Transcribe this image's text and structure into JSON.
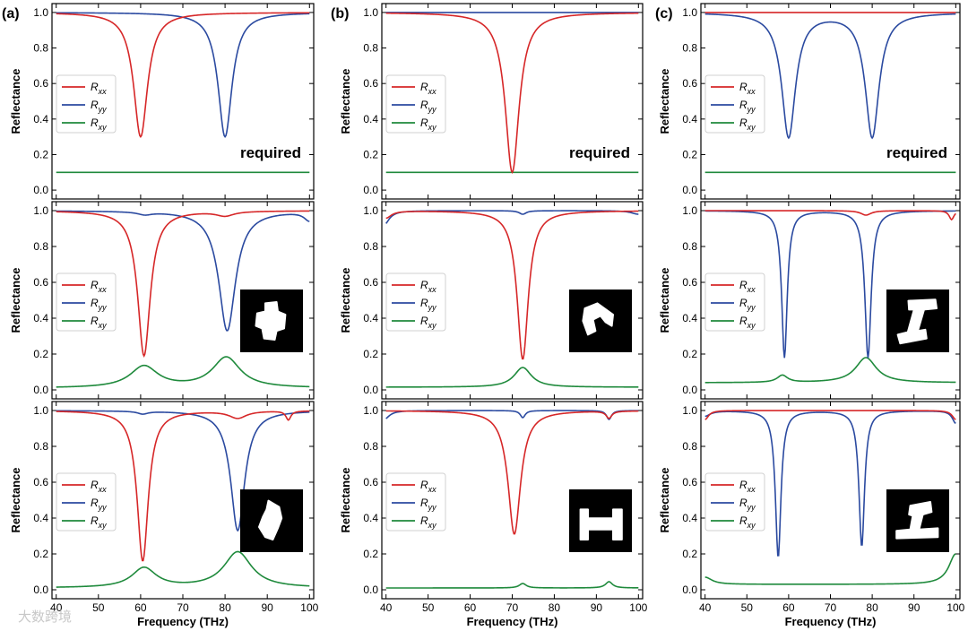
{
  "chart_data": {
    "type": "line",
    "xlabel": "Frequency (THz)",
    "ylabel": "Reflectance",
    "xlim": [
      39,
      101
    ],
    "ylim": [
      -0.05,
      1.05
    ],
    "xticks": [
      40,
      50,
      60,
      70,
      80,
      90,
      100
    ],
    "yticks": [
      0.0,
      0.2,
      0.4,
      0.6,
      0.8,
      1.0
    ],
    "ytick_labels": [
      "0.0",
      "0.2",
      "0.4",
      "0.6",
      "0.8",
      "1.0"
    ],
    "legend_labels": [
      [
        "R",
        "xx"
      ],
      [
        "R",
        "yy"
      ],
      [
        "R",
        "xy"
      ]
    ],
    "series_colors": {
      "Rxx": "#d62728",
      "Ryy": "#2b4aa0",
      "Rxy": "#1f8a3c"
    },
    "legend_location": "center-left",
    "columns": [
      {
        "label": "(a)",
        "rows": [
          {
            "annotation": "required",
            "inset": null,
            "series": {
              "Rxx": {
                "base": 1.0,
                "dips": [
                  [
                    60,
                    0.7,
                    2.0
                  ]
                ],
                "offset": 0
              },
              "Ryy": {
                "base": 1.0,
                "dips": [
                  [
                    80,
                    0.7,
                    2.0
                  ]
                ],
                "offset": 0
              },
              "Rxy": {
                "base": 0.1,
                "dips": [],
                "offset": 0
              }
            }
          },
          {
            "annotation": "",
            "inset": "shape-blob",
            "series": {
              "Rxx": {
                "base": 1.0,
                "dips": [
                  [
                    60.8,
                    0.81,
                    1.8
                  ],
                  [
                    80,
                    0.025,
                    2.5
                  ]
                ],
                "offset": 0
              },
              "Ryy": {
                "base": 1.0,
                "dips": [
                  [
                    80.5,
                    0.67,
                    2.4
                  ],
                  [
                    61,
                    0.015,
                    2.0
                  ],
                  [
                    100,
                    0.05,
                    1.5
                  ]
                ],
                "offset": 0
              },
              "Rxy": {
                "base": 0.0,
                "dips": [
                  [
                    60.8,
                    -0.12,
                    4.0
                  ],
                  [
                    80.3,
                    -0.17,
                    4.0
                  ]
                ],
                "offset": 0.01
              }
            }
          },
          {
            "annotation": "",
            "inset": "shape-blob2",
            "series": {
              "Rxx": {
                "base": 1.0,
                "dips": [
                  [
                    60.5,
                    0.84,
                    1.6
                  ],
                  [
                    83,
                    0.04,
                    2.5
                  ],
                  [
                    95,
                    0.05,
                    0.7
                  ]
                ],
                "offset": 0
              },
              "Ryy": {
                "base": 1.0,
                "dips": [
                  [
                    83,
                    0.67,
                    2.0
                  ],
                  [
                    60.5,
                    0.015,
                    1.5
                  ]
                ],
                "offset": 0
              },
              "Rxy": {
                "base": 0.0,
                "dips": [
                  [
                    60.8,
                    -0.11,
                    3.5
                  ],
                  [
                    83,
                    -0.2,
                    4.0
                  ]
                ],
                "offset": 0.01
              }
            }
          }
        ]
      },
      {
        "label": "(b)",
        "rows": [
          {
            "annotation": "required",
            "inset": null,
            "series": {
              "Rxx": {
                "base": 1.0,
                "dips": [
                  [
                    70,
                    0.9,
                    2.0
                  ]
                ],
                "offset": 0
              },
              "Ryy": {
                "base": 1.0,
                "dips": [],
                "offset": 0
              },
              "Rxy": {
                "base": 0.1,
                "dips": [],
                "offset": 0
              }
            }
          },
          {
            "annotation": "",
            "inset": "shape-hook",
            "series": {
              "Rxx": {
                "base": 1.0,
                "dips": [
                  [
                    72.5,
                    0.83,
                    1.6
                  ],
                  [
                    40,
                    0.04,
                    1.5
                  ]
                ],
                "offset": 0
              },
              "Ryy": {
                "base": 1.0,
                "dips": [
                  [
                    72.5,
                    0.02,
                    1.0
                  ],
                  [
                    39.5,
                    0.08,
                    1.5
                  ],
                  [
                    100,
                    0.02,
                    2.0
                  ]
                ],
                "offset": 0
              },
              "Rxy": {
                "base": 0.0,
                "dips": [
                  [
                    72.5,
                    -0.11,
                    2.5
                  ]
                ],
                "offset": 0.015
              }
            }
          },
          {
            "annotation": "",
            "inset": "shape-H",
            "series": {
              "Rxx": {
                "base": 1.0,
                "dips": [
                  [
                    70.5,
                    0.69,
                    1.8
                  ],
                  [
                    93,
                    0.04,
                    0.8
                  ]
                ],
                "offset": 0
              },
              "Ryy": {
                "base": 1.0,
                "dips": [
                  [
                    72.5,
                    0.04,
                    0.7
                  ],
                  [
                    93,
                    0.05,
                    0.7
                  ],
                  [
                    39.5,
                    0.05,
                    1.5
                  ]
                ],
                "offset": 0
              },
              "Rxy": {
                "base": 0.0,
                "dips": [
                  [
                    72.5,
                    -0.025,
                    1.0
                  ],
                  [
                    93,
                    -0.035,
                    1.0
                  ]
                ],
                "offset": 0.01
              }
            }
          }
        ]
      },
      {
        "label": "(c)",
        "rows": [
          {
            "annotation": "required",
            "inset": null,
            "series": {
              "Rxx": {
                "base": 1.0,
                "dips": [],
                "offset": 0
              },
              "Ryy": {
                "base": 1.0,
                "dips": [
                  [
                    60,
                    0.7,
                    2.0
                  ],
                  [
                    80,
                    0.7,
                    2.0
                  ]
                ],
                "offset": 0
              },
              "Rxy": {
                "base": 0.1,
                "dips": [],
                "offset": 0
              }
            }
          },
          {
            "annotation": "",
            "inset": "shape-I",
            "series": {
              "Rxx": {
                "base": 1.0,
                "dips": [
                  [
                    78.5,
                    0.025,
                    1.5
                  ],
                  [
                    99,
                    0.05,
                    0.7
                  ]
                ],
                "offset": 0
              },
              "Ryy": {
                "base": 1.0,
                "dips": [
                  [
                    59,
                    0.82,
                    0.8
                  ],
                  [
                    79,
                    0.82,
                    0.9
                  ]
                ],
                "offset": 0
              },
              "Rxy": {
                "base": 0.0,
                "dips": [
                  [
                    78.5,
                    -0.14,
                    3.0
                  ],
                  [
                    58.5,
                    -0.04,
                    1.5
                  ]
                ],
                "offset": 0.04
              }
            }
          },
          {
            "annotation": "",
            "inset": "shape-I2",
            "series": {
              "Rxx": {
                "base": 1.0,
                "dips": [
                  [
                    40,
                    0.05,
                    1.0
                  ],
                  [
                    100,
                    0.05,
                    1.0
                  ]
                ],
                "offset": 0
              },
              "Ryy": {
                "base": 1.0,
                "dips": [
                  [
                    57.5,
                    0.82,
                    0.8
                  ],
                  [
                    77.5,
                    0.76,
                    0.8
                  ],
                  [
                    40,
                    0.03,
                    1.5
                  ],
                  [
                    100,
                    0.07,
                    1.0
                  ]
                ],
                "offset": 0
              },
              "Rxy": {
                "base": 0.0,
                "dips": [
                  [
                    40,
                    -0.04,
                    2.0
                  ],
                  [
                    100,
                    -0.17,
                    2.0
                  ]
                ],
                "offset": 0.03
              }
            }
          }
        ]
      }
    ]
  },
  "watermark": "大数跨境"
}
